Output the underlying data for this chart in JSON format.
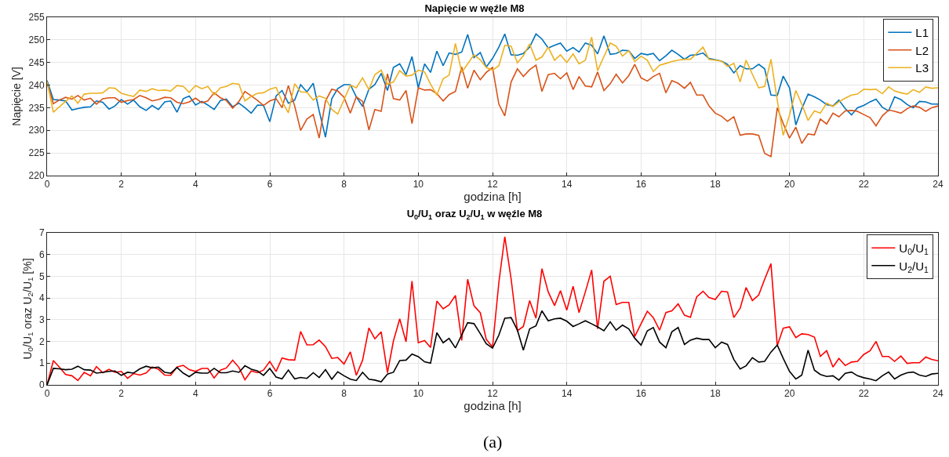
{
  "chart_data": [
    {
      "type": "line",
      "title": "Napięcie w węźle M8",
      "xlabel": "godzina [h]",
      "ylabel": "Napięcie [V]",
      "x": [
        0,
        0.17,
        0.33,
        0.5,
        0.67,
        0.83,
        1,
        1.17,
        1.33,
        1.5,
        1.67,
        1.83,
        2,
        2.17,
        2.33,
        2.5,
        2.67,
        2.83,
        3,
        3.17,
        3.33,
        3.5,
        3.67,
        3.83,
        4,
        4.17,
        4.33,
        4.5,
        4.67,
        4.83,
        5,
        5.17,
        5.33,
        5.5,
        5.67,
        5.83,
        6,
        6.17,
        6.33,
        6.5,
        6.67,
        6.83,
        7,
        7.17,
        7.33,
        7.5,
        7.67,
        7.83,
        8,
        8.17,
        8.33,
        8.5,
        8.67,
        8.83,
        9,
        9.17,
        9.33,
        9.5,
        9.67,
        9.83,
        10,
        10.17,
        10.33,
        10.5,
        10.67,
        10.83,
        11,
        11.17,
        11.33,
        11.5,
        11.67,
        11.83,
        12,
        12.17,
        12.33,
        12.5,
        12.67,
        12.83,
        13,
        13.17,
        13.33,
        13.5,
        13.67,
        13.83,
        14,
        14.17,
        14.33,
        14.5,
        14.67,
        14.83,
        15,
        15.17,
        15.33,
        15.5,
        15.67,
        15.83,
        16,
        16.17,
        16.33,
        16.5,
        16.67,
        16.83,
        17,
        17.17,
        17.33,
        17.5,
        17.67,
        17.83,
        18,
        18.17,
        18.33,
        18.5,
        18.67,
        18.83,
        19,
        19.17,
        19.33,
        19.5,
        19.67,
        19.83,
        20,
        20.17,
        20.33,
        20.5,
        20.67,
        20.83,
        21,
        21.17,
        21.33,
        21.5,
        21.67,
        21.83,
        22,
        22.17,
        22.33,
        22.5,
        22.67,
        22.83,
        23,
        23.17,
        23.33,
        23.5,
        23.67,
        23.83,
        24
      ],
      "series": [
        {
          "name": "L1",
          "color": "#0072bd",
          "values": [
            241,
            236.8,
            236.7,
            236.5,
            234.5,
            234.8,
            235.1,
            235.2,
            236.5,
            236.2,
            234.7,
            235.4,
            236.8,
            235.8,
            236.7,
            235.2,
            234.4,
            235.5,
            234.6,
            236.3,
            236.5,
            234,
            237,
            237.6,
            235.6,
            236.4,
            235.6,
            234.6,
            236.6,
            236.9,
            235.2,
            236,
            235,
            233.8,
            235.6,
            235.5,
            231.9,
            237.6,
            238.8,
            236,
            236.7,
            240.1,
            238.5,
            240.4,
            234.3,
            228.5,
            237,
            239.2,
            240.1,
            240.1,
            237.4,
            235.3,
            239.1,
            240.1,
            242.6,
            238.8,
            243.9,
            244.7,
            242.3,
            246.3,
            239.4,
            244.7,
            242.8,
            247.5,
            244.3,
            247.1,
            246.8,
            247.3,
            251.2,
            246.1,
            247.2,
            244,
            245.9,
            248.4,
            251.3,
            246.7,
            246.6,
            247,
            248.4,
            251.3,
            250.2,
            248.2,
            248.8,
            249.3,
            247.5,
            248.3,
            247.3,
            249.3,
            248.8,
            246.9,
            250.9,
            246.8,
            247,
            247.7,
            247.6,
            245.9,
            247,
            246.7,
            247,
            245.4,
            246.5,
            247.7,
            246.8,
            245.7,
            246.6,
            246.7,
            247.1,
            245.9,
            245.6,
            245.3,
            244.6,
            242.7,
            244.3,
            243.6,
            243.6,
            244.6,
            243.6,
            237.8,
            237.7,
            242,
            239.4,
            231.2,
            234.8,
            238,
            237.4,
            236.7,
            235.7,
            235.4,
            236.7,
            234.8,
            233.4,
            235,
            235.5,
            236.3,
            236.9,
            235.1,
            234.3,
            237.4,
            236.8,
            235.7,
            235,
            236.4,
            236.3,
            235.8,
            235.8
          ]
        },
        {
          "name": "L2",
          "color": "#d95319",
          "values": [
            240.5,
            235.9,
            236.7,
            237.3,
            236.9,
            237.7,
            236.7,
            237.1,
            235.8,
            237,
            237.2,
            237.2,
            236.2,
            236.6,
            236.8,
            237.7,
            237.2,
            236.5,
            236.8,
            237.3,
            237.2,
            236.2,
            235.9,
            236.3,
            237.1,
            236.1,
            236.5,
            238.3,
            237.2,
            236.6,
            234.9,
            236.4,
            238.6,
            237.6,
            236.6,
            235.5,
            236.5,
            237,
            235,
            239.9,
            235.4,
            230,
            232.5,
            233.5,
            228.3,
            236.5,
            239.1,
            238.7,
            237.3,
            233.8,
            237.4,
            236.4,
            230.1,
            234.6,
            234.2,
            242.5,
            237,
            236.7,
            238.8,
            231.5,
            239.4,
            238.9,
            239,
            238.1,
            236.5,
            237.9,
            238.6,
            244,
            239.3,
            243.3,
            241.2,
            242.8,
            243.9,
            235.8,
            233.2,
            240.7,
            243.6,
            241.9,
            243.4,
            244.4,
            238.6,
            242.3,
            242.6,
            241.4,
            242.7,
            239,
            241.9,
            239.8,
            239.6,
            242.9,
            238.8,
            240.3,
            242.4,
            240.5,
            242.1,
            244.6,
            241.6,
            240.9,
            241.9,
            242.6,
            238.3,
            241,
            240.4,
            239.3,
            240.6,
            237.8,
            237.8,
            235.4,
            233.8,
            233.1,
            232,
            233,
            228.9,
            229.2,
            229.2,
            228.9,
            224.9,
            224.2,
            235,
            231.5,
            228.3,
            230.7,
            227.1,
            229.2,
            229,
            232.5,
            231.4,
            233.8,
            233,
            234.3,
            234.4,
            234.2,
            233.5,
            232.8,
            231,
            233.2,
            234.5,
            234.2,
            233.8,
            234.8,
            235.4,
            235.1,
            234.2,
            235,
            235.4
          ]
        },
        {
          "name": "L3",
          "color": "#edb120",
          "values": [
            240.8,
            234,
            235.2,
            236.4,
            237.6,
            236,
            238,
            238.2,
            238.2,
            238.3,
            239.4,
            239.3,
            238.2,
            237.8,
            237.5,
            238.9,
            238.6,
            239.2,
            238.8,
            238.9,
            238.7,
            239.9,
            239.7,
            238.4,
            239.9,
            239.2,
            239.7,
            237.9,
            239.4,
            239.7,
            240.4,
            240.2,
            236.5,
            237.5,
            238.2,
            238.3,
            239.1,
            239.5,
            236.4,
            233.9,
            240.3,
            238.5,
            238.4,
            236.7,
            237.6,
            237.1,
            234.6,
            233.6,
            236.8,
            240,
            239.4,
            241.6,
            239,
            242.3,
            243.3,
            240.2,
            240.7,
            243.2,
            242,
            242.2,
            243.3,
            242.9,
            240.2,
            237.8,
            241.4,
            242.2,
            249.2,
            242.8,
            244.7,
            246.7,
            245.6,
            243.9,
            243.3,
            244.3,
            248.8,
            248.6,
            244.9,
            246.5,
            249.1,
            245.5,
            246.2,
            248.4,
            245.5,
            246.7,
            245,
            246.9,
            244.7,
            245.5,
            250.6,
            243.2,
            246.3,
            249.3,
            248.6,
            246.4,
            247.6,
            245.2,
            246.4,
            245.5,
            243,
            244.4,
            244.8,
            245.2,
            245.5,
            245.7,
            245.7,
            247,
            248.4,
            245.7,
            245.5,
            245.3,
            244.1,
            244.8,
            240.7,
            245.5,
            242.4,
            239.4,
            239.7,
            245.7,
            236.6,
            228.9,
            233.4,
            238.8,
            235.8,
            232.2,
            234.3,
            233.8,
            236,
            235.3,
            236.3,
            237.1,
            237.8,
            238,
            239.1,
            239,
            239.1,
            238.1,
            239.6,
            238.7,
            238.3,
            238,
            239,
            238.4,
            239.6,
            239.3,
            239.4
          ]
        }
      ],
      "xlim": [
        0,
        24
      ],
      "xticks": [
        0,
        2,
        4,
        6,
        8,
        10,
        12,
        14,
        16,
        18,
        20,
        22,
        24
      ],
      "ylim": [
        220,
        255
      ],
      "yticks": [
        220,
        225,
        230,
        235,
        240,
        245,
        250,
        255
      ],
      "grid": true,
      "legend": "top right"
    },
    {
      "type": "line",
      "title": "U$_{0}$/U$_{1}$ oraz U$_{2}$/U$_{1}$ w węźle M8",
      "xlabel": "godzina [h]",
      "ylabel": "U$_{0}$/U$_{1}$ oraz U$_{2}$/U$_{1}$ [%]",
      "x": [
        0,
        0.17,
        0.33,
        0.5,
        0.67,
        0.83,
        1,
        1.17,
        1.33,
        1.5,
        1.67,
        1.83,
        2,
        2.17,
        2.33,
        2.5,
        2.67,
        2.83,
        3,
        3.17,
        3.33,
        3.5,
        3.67,
        3.83,
        4,
        4.17,
        4.33,
        4.5,
        4.67,
        4.83,
        5,
        5.17,
        5.33,
        5.5,
        5.67,
        5.83,
        6,
        6.17,
        6.33,
        6.5,
        6.67,
        6.83,
        7,
        7.17,
        7.33,
        7.5,
        7.67,
        7.83,
        8,
        8.17,
        8.33,
        8.5,
        8.67,
        8.83,
        9,
        9.17,
        9.33,
        9.5,
        9.67,
        9.83,
        10,
        10.17,
        10.33,
        10.5,
        10.67,
        10.83,
        11,
        11.17,
        11.33,
        11.5,
        11.67,
        11.83,
        12,
        12.17,
        12.33,
        12.5,
        12.67,
        12.83,
        13,
        13.17,
        13.33,
        13.5,
        13.67,
        13.83,
        14,
        14.17,
        14.33,
        14.5,
        14.67,
        14.83,
        15,
        15.17,
        15.33,
        15.5,
        15.67,
        15.83,
        16,
        16.17,
        16.33,
        16.5,
        16.67,
        16.83,
        17,
        17.17,
        17.33,
        17.5,
        17.67,
        17.83,
        18,
        18.17,
        18.33,
        18.5,
        18.67,
        18.83,
        19,
        19.17,
        19.33,
        19.5,
        19.67,
        19.83,
        20,
        20.17,
        20.33,
        20.5,
        20.67,
        20.83,
        21,
        21.17,
        21.33,
        21.5,
        21.67,
        21.83,
        22,
        22.17,
        22.33,
        22.5,
        22.67,
        22.83,
        23,
        23.17,
        23.33,
        23.5,
        23.67,
        23.83,
        24
      ],
      "series": [
        {
          "name": "U$_{0}$/U$_{1}$",
          "color": "#ff0000",
          "values": [
            0,
            1.12,
            0.82,
            0.48,
            0.42,
            0.2,
            0.58,
            0.42,
            0.84,
            0.56,
            0.72,
            0.58,
            0.62,
            0.3,
            0.52,
            0.45,
            0.55,
            0.82,
            0.72,
            0.45,
            0.44,
            0.82,
            0.9,
            0.7,
            0.62,
            0.76,
            0.76,
            0.32,
            0.68,
            0.78,
            1.14,
            0.8,
            0.24,
            0.64,
            0.56,
            0.68,
            1.08,
            0.62,
            1.24,
            1.16,
            1.14,
            2.46,
            1.84,
            1.85,
            2.06,
            1.76,
            1.22,
            1.26,
            0.96,
            1.52,
            0.44,
            1.14,
            2.62,
            2.12,
            2.44,
            0.56,
            2.02,
            3.04,
            1.98,
            4.78,
            1.94,
            2.04,
            1.72,
            3.86,
            3.5,
            3.68,
            4.12,
            2.04,
            4.86,
            3.64,
            3.32,
            2.1,
            1.74,
            4.71,
            6.82,
            4.88,
            2.49,
            2.69,
            3.88,
            3.07,
            5.35,
            4.28,
            3.65,
            4.34,
            3.44,
            4.54,
            3.33,
            4.28,
            5.29,
            2.58,
            4.77,
            5,
            3.7,
            3.8,
            3.8,
            2.22,
            2.81,
            3.39,
            3.1,
            2.52,
            3.33,
            3.41,
            3.73,
            3.21,
            3.11,
            4.05,
            4.31,
            4.02,
            3.93,
            4.31,
            4.28,
            3.1,
            3.53,
            4.48,
            3.88,
            4.14,
            4.86,
            5.58,
            1.8,
            2.61,
            2.67,
            2.18,
            2.35,
            2.32,
            2.2,
            1.31,
            1.57,
            0.82,
            1.22,
            0.89,
            1.05,
            1.08,
            1.4,
            1.57,
            2,
            1.31,
            1.31,
            1.08,
            1.33,
            0.99,
            1.02,
            1.02,
            1.28,
            1.17,
            1.11
          ]
        },
        {
          "name": "U$_{2}$/U$_{1}$",
          "color": "#000000",
          "values": [
            0,
            0.76,
            0.74,
            0.7,
            0.72,
            0.86,
            0.7,
            0.68,
            0.54,
            0.58,
            0.62,
            0.64,
            0.44,
            0.58,
            0.54,
            0.74,
            0.86,
            0.78,
            0.82,
            0.58,
            0.54,
            0.8,
            0.54,
            0.38,
            0.58,
            0.54,
            0.54,
            0.76,
            0.56,
            0.56,
            0.64,
            0.58,
            0.88,
            0.72,
            0.64,
            0.44,
            0.76,
            0.36,
            0.28,
            0.68,
            0.28,
            0.34,
            0.3,
            0.56,
            0.34,
            0.7,
            0.26,
            0.6,
            0.42,
            0.26,
            0.2,
            0.58,
            0.26,
            0.22,
            0.14,
            0.5,
            0.58,
            1.12,
            1.14,
            1.42,
            1.3,
            1.06,
            1,
            2.4,
            1.94,
            2.14,
            1.7,
            2.3,
            2.86,
            2.82,
            2.36,
            1.9,
            1.69,
            2.29,
            3.07,
            3.1,
            2.52,
            1.6,
            2.58,
            2.72,
            3.41,
            2.95,
            3.04,
            3.07,
            2.93,
            2.69,
            2.81,
            2.95,
            2.81,
            2.67,
            2.49,
            2.9,
            2.52,
            2.75,
            2.58,
            2.15,
            1.83,
            2.49,
            2.64,
            1.97,
            1.71,
            2.44,
            2.64,
            1.86,
            2.06,
            2.15,
            2.09,
            2.09,
            1.71,
            1.97,
            1.86,
            1.17,
            0.73,
            0.88,
            1.25,
            1.05,
            1.08,
            1.51,
            1.83,
            1.22,
            0.62,
            0.27,
            0.45,
            1.6,
            0.68,
            0.48,
            0.39,
            0.42,
            0.22,
            0.53,
            0.59,
            0.42,
            0.33,
            0.27,
            0.19,
            0.42,
            0.59,
            0.27,
            0.45,
            0.56,
            0.59,
            0.45,
            0.39,
            0.5,
            0.53
          ]
        }
      ],
      "xlim": [
        0,
        24
      ],
      "xticks": [
        0,
        2,
        4,
        6,
        8,
        10,
        12,
        14,
        16,
        18,
        20,
        22,
        24
      ],
      "ylim": [
        0,
        7
      ],
      "yticks": [
        0,
        1,
        2,
        3,
        4,
        5,
        6,
        7
      ],
      "grid": true,
      "legend": "top right",
      "annotations": [
        "(a)"
      ]
    }
  ]
}
